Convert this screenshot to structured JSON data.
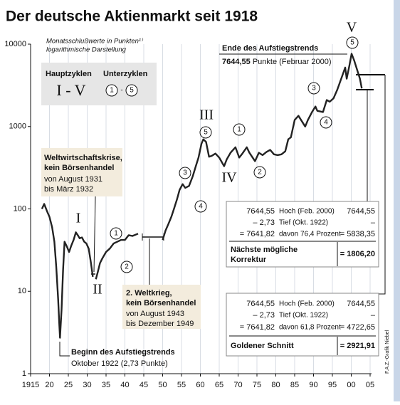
{
  "chart_data": {
    "type": "line",
    "title": "Der deutsche Aktienmarkt seit 1918",
    "subtitle": [
      "Monatsschlußwerte in Punkten¹⁾",
      "logarithmische Darstellung"
    ],
    "log_scale": true,
    "grid": "x",
    "series": [
      {
        "name": "Aktienindex",
        "color": "#222222",
        "x": [
          1918,
          1918.6,
          1919.3,
          1920,
          1920.7,
          1921.3,
          1921.8,
          1922.3,
          1922.6,
          1922.8,
          1923.2,
          1923.6,
          1924,
          1924.6,
          1925.2,
          1925.8,
          1926.4,
          1927,
          1927.5,
          1928,
          1928.6,
          1929.2,
          1929.8,
          1930.4,
          1931,
          1931.5,
          1932,
          1932.3,
          1932.8,
          1933.4,
          1934,
          1935,
          1936,
          1937,
          1938,
          1939,
          1940,
          1941,
          1942,
          1943.5,
          1946.5,
          1950,
          1950.8,
          1951.5,
          1952.3,
          1953,
          1953.8,
          1954.5,
          1955.3,
          1956,
          1957,
          1958,
          1958.8,
          1959.5,
          1960.3,
          1960.8,
          1961.5,
          1962.3,
          1963,
          1964,
          1965,
          1966.3,
          1967,
          1968,
          1969.3,
          1970.3,
          1971,
          1972.3,
          1973,
          1974.5,
          1975.5,
          1976.5,
          1977.5,
          1978.5,
          1979.5,
          1980.5,
          1981.5,
          1982.5,
          1983.3,
          1984,
          1985,
          1986,
          1987.8,
          1988.5,
          1989.6,
          1990.5,
          1991,
          1992.5,
          1993.5,
          1994.3,
          1995.3,
          1996.3,
          1997.5,
          1998.4,
          1998.8,
          1999.5,
          2000.1,
          2000.8,
          2001.6,
          2002.3,
          2002.8
        ],
        "values": [
          100,
          115,
          95,
          80,
          60,
          40,
          20,
          8,
          4,
          2.73,
          6,
          18,
          40,
          35,
          30,
          36,
          42,
          52,
          48,
          44,
          45,
          40,
          38,
          33,
          22,
          15,
          null,
          14,
          17,
          22,
          25,
          30,
          33,
          38,
          40,
          42,
          42,
          48,
          47,
          50,
          null,
          42,
          55,
          65,
          80,
          100,
          130,
          170,
          200,
          180,
          190,
          250,
          330,
          420,
          620,
          700,
          650,
          430,
          440,
          470,
          420,
          330,
          400,
          480,
          560,
          420,
          460,
          560,
          480,
          380,
          480,
          450,
          490,
          520,
          460,
          450,
          460,
          500,
          700,
          740,
          1200,
          1350,
          1000,
          1200,
          1500,
          1750,
          1550,
          1500,
          2100,
          2000,
          2200,
          2800,
          4000,
          5200,
          3800,
          5500,
          7644.55,
          6300,
          4800,
          3800,
          2900
        ]
      }
    ],
    "xlim": [
      1915,
      2005
    ],
    "xticks": [
      {
        "value": 1915,
        "label": "1915"
      },
      {
        "value": 1920,
        "label": "20"
      },
      {
        "value": 1925,
        "label": "25"
      },
      {
        "value": 1930,
        "label": "30"
      },
      {
        "value": 1935,
        "label": "35"
      },
      {
        "value": 1940,
        "label": "40"
      },
      {
        "value": 1945,
        "label": "45"
      },
      {
        "value": 1950,
        "label": "50"
      },
      {
        "value": 1955,
        "label": "55"
      },
      {
        "value": 1960,
        "label": "60"
      },
      {
        "value": 1965,
        "label": "65"
      },
      {
        "value": 1970,
        "label": "70"
      },
      {
        "value": 1975,
        "label": "75"
      },
      {
        "value": 1980,
        "label": "80"
      },
      {
        "value": 1985,
        "label": "85"
      },
      {
        "value": 1990,
        "label": "90"
      },
      {
        "value": 1995,
        "label": "95"
      },
      {
        "value": 2000,
        "label": "00"
      },
      {
        "value": 2005,
        "label": "05"
      }
    ],
    "ylim": [
      1,
      10000
    ],
    "yticks": [
      1,
      10,
      100,
      1000,
      10000
    ],
    "legend": {
      "main_label": "Hauptzyklen",
      "sub_label": "Unterzyklen",
      "main_range": "I - V",
      "sub_from": "1",
      "sub_dash": "-",
      "sub_to": "5"
    },
    "main_cycles": [
      "I",
      "II",
      "III",
      "IV",
      "V"
    ],
    "sub_cycles": [
      "1",
      "2",
      "3",
      "4",
      "5",
      "1",
      "2",
      "3",
      "4",
      "5"
    ],
    "crisis_box": [
      "Weltwirtschaftskrise,",
      "kein Börsenhandel",
      "von August 1931",
      "bis März 1932"
    ],
    "war_box": [
      "2. Weltkrieg,",
      "kein Börsenhandel",
      "von August 1943",
      "bis Dezember 1949"
    ],
    "start_note": [
      "Beginn des Aufstiegstrends",
      "Oktober 1922 (2,73 Punkte)"
    ],
    "end_note": [
      "Ende des Aufstiegstrends",
      "7644,55",
      " Punkte (Februar 2000)"
    ],
    "calc_1": {
      "rows": [
        [
          "7644,55",
          "Hoch (Feb. 2000)",
          "7644,55"
        ],
        [
          "– 2,73",
          "Tief (Okt. 1922)",
          "–"
        ],
        [
          "= 7641,82",
          "davon 76,4 Prozent",
          "= 5838,35"
        ]
      ],
      "result_label": [
        "Nächste mögliche",
        "Korrektur"
      ],
      "result": "= 1806,20"
    },
    "calc_2": {
      "rows": [
        [
          "7644,55",
          "Hoch (Feb. 2000)",
          "7644,55"
        ],
        [
          "– 2,73",
          "Tief (Okt. 1922)",
          "–"
        ],
        [
          "= 7641,82",
          "davon 61,8 Prozent",
          "= 4722,65"
        ]
      ],
      "result_label": [
        "Goldener Schnitt"
      ],
      "result": "= 2921,91"
    },
    "credit": "F.A.Z.-Grafik Niebel"
  }
}
